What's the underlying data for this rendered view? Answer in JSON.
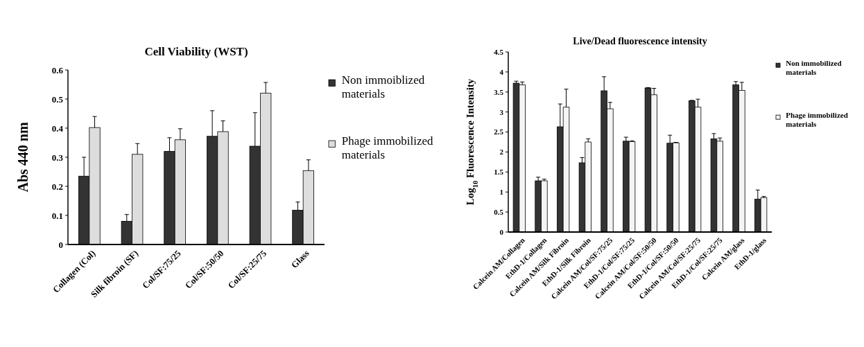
{
  "chart_data": [
    {
      "type": "bar",
      "title": "Cell Viability (WST)",
      "ylabel": "Abs 440 nm",
      "categories": [
        "Collagen (Col)",
        "Silk fibroin (SF)",
        "Col/SF:75/25",
        "Col/SF:50/50",
        "Col/SF:25/75",
        "Glass"
      ],
      "series": [
        {
          "name": "Non immoiblized materials",
          "color": "#333333",
          "values": [
            0.235,
            0.08,
            0.32,
            0.372,
            0.338,
            0.118
          ],
          "errors": [
            [
              0.235,
              0.3
            ],
            [
              0.08,
              0.103
            ],
            [
              0.32,
              0.367
            ],
            [
              0.372,
              0.46
            ],
            [
              0.338,
              0.453
            ],
            [
              0.118,
              0.146
            ]
          ]
        },
        {
          "name": "Phage immobilized materials",
          "color": "#dddddd",
          "values": [
            0.402,
            0.31,
            0.36,
            0.388,
            0.52,
            0.254
          ],
          "errors": [
            [
              0.402,
              0.44
            ],
            [
              0.31,
              0.347
            ],
            [
              0.36,
              0.398
            ],
            [
              0.388,
              0.425
            ],
            [
              0.52,
              0.557
            ],
            [
              0.254,
              0.291
            ]
          ]
        }
      ],
      "ylim": [
        0,
        0.6
      ],
      "yticks": [
        0,
        0.1,
        0.2,
        0.3,
        0.4,
        0.5,
        0.6
      ],
      "grid": false,
      "legend": "right"
    },
    {
      "type": "bar",
      "title": "Live/Dead fluorescence intensity",
      "ylabel": "Log$_{10}$ Fluorescence Intensity",
      "categories": [
        "Calcein AM/Collagen",
        "EthD-1/Collagen",
        "Calcein AM/Silk Fibroin",
        "EthD-1/Silk Fibroin",
        "Calcein AM/Col/SF:75/25",
        "EthD-1/Col/SF:75/25",
        "Calcein AM/Col/SF:50/50",
        "EthD-1/Col/SF:50/50",
        "Calcein AM/Col/SF:25/75",
        "EthD-1/Col/SF:25/75",
        "Calcein AM/glass",
        "EthD-1/glass"
      ],
      "series": [
        {
          "name": "Non immobilized materials",
          "color": "#333333",
          "values": [
            3.72,
            1.28,
            2.63,
            1.73,
            3.53,
            2.27,
            3.6,
            2.22,
            3.28,
            2.33,
            3.68,
            0.82
          ],
          "errors": [
            [
              3.72,
              3.77
            ],
            [
              1.28,
              1.37
            ],
            [
              2.63,
              3.2
            ],
            [
              1.73,
              1.86
            ],
            [
              3.53,
              3.88
            ],
            [
              2.27,
              2.37
            ],
            [
              3.6,
              3.61
            ],
            [
              2.22,
              2.42
            ],
            [
              3.28,
              3.29
            ],
            [
              2.33,
              2.46
            ],
            [
              3.68,
              3.76
            ],
            [
              0.82,
              1.05
            ]
          ]
        },
        {
          "name": "Phage immobilized materials",
          "color": "#f4f4f4",
          "values": [
            3.68,
            1.28,
            3.12,
            2.25,
            3.08,
            2.26,
            3.43,
            2.23,
            3.12,
            2.27,
            3.54,
            0.86
          ],
          "errors": [
            [
              3.68,
              3.75
            ],
            [
              1.28,
              1.32
            ],
            [
              3.12,
              3.57
            ],
            [
              2.25,
              2.33
            ],
            [
              3.08,
              3.24
            ],
            [
              2.26,
              2.28
            ],
            [
              3.43,
              3.59
            ],
            [
              2.23,
              2.24
            ],
            [
              3.12,
              3.32
            ],
            [
              2.27,
              2.35
            ],
            [
              3.54,
              3.74
            ],
            [
              0.86,
              0.89
            ]
          ]
        }
      ],
      "ylim": [
        0,
        4.5
      ],
      "yticks": [
        0,
        0.5,
        1,
        1.5,
        2,
        2.5,
        3,
        3.5,
        4,
        4.5
      ],
      "grid": false,
      "legend": "right"
    }
  ]
}
